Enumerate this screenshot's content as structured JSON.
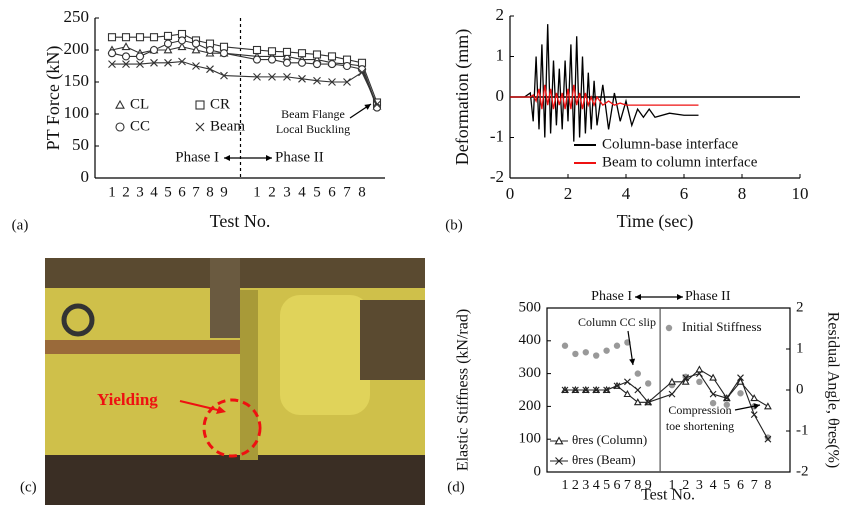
{
  "chart_data": [
    {
      "type": "line",
      "panel": "(a)",
      "x_label": "Test No.",
      "y_label": "PT Force (kN)",
      "categories": [
        "1",
        "2",
        "3",
        "4",
        "5",
        "6",
        "7",
        "8",
        "9",
        "1",
        "2",
        "3",
        "4",
        "5",
        "6",
        "7",
        "8",
        null
      ],
      "ylim": [
        0,
        250
      ],
      "yticks": [
        0,
        50,
        100,
        150,
        200,
        250
      ],
      "phases": [
        "Phase I",
        "Phase II"
      ],
      "annotation": [
        "Beam Flange",
        "Local Buckling"
      ],
      "series": [
        {
          "name": "CL",
          "marker": "triangle",
          "color": "#333333",
          "values": [
            200,
            205,
            195,
            200,
            200,
            205,
            200,
            195,
            195,
            190,
            190,
            190,
            185,
            185,
            180,
            178,
            175,
            112
          ]
        },
        {
          "name": "CR",
          "marker": "square",
          "color": "#333333",
          "values": [
            220,
            220,
            220,
            220,
            222,
            225,
            215,
            210,
            205,
            200,
            198,
            197,
            195,
            193,
            190,
            185,
            180,
            118
          ]
        },
        {
          "name": "CC",
          "marker": "circle",
          "color": "#333333",
          "values": [
            195,
            190,
            190,
            200,
            210,
            215,
            210,
            200,
            195,
            185,
            185,
            180,
            180,
            178,
            178,
            175,
            170,
            110
          ]
        },
        {
          "name": "Beam",
          "marker": "x",
          "color": "#333333",
          "values": [
            178,
            178,
            178,
            180,
            180,
            182,
            175,
            170,
            160,
            158,
            158,
            158,
            155,
            152,
            150,
            150,
            165,
            115
          ]
        }
      ]
    },
    {
      "type": "line",
      "panel": "(b)",
      "x_label": "Time (sec)",
      "y_label": "Deformation (mm)",
      "x": [
        0,
        0.5,
        0.7,
        0.8,
        0.9,
        1.0,
        1.1,
        1.2,
        1.3,
        1.4,
        1.5,
        1.6,
        1.7,
        1.8,
        1.9,
        2.0,
        2.1,
        2.2,
        2.3,
        2.4,
        2.5,
        2.6,
        2.7,
        2.8,
        2.9,
        3.0,
        3.2,
        3.4,
        3.6,
        3.8,
        4.0,
        4.2,
        4.4,
        4.6,
        4.8,
        5.0,
        5.5,
        6.0,
        6.5
      ],
      "xlim": [
        0,
        10
      ],
      "xticks": [
        0,
        2,
        4,
        6,
        8,
        10
      ],
      "ylim": [
        -2,
        2
      ],
      "yticks": [
        -2,
        -1,
        0,
        1,
        2
      ],
      "series": [
        {
          "name": "Column-base interface",
          "color": "#000000",
          "values": [
            0,
            0,
            0.1,
            -0.6,
            1.0,
            -0.8,
            1.3,
            -1.0,
            1.8,
            -0.9,
            0.9,
            -0.7,
            0.7,
            -0.8,
            0.9,
            -0.6,
            1.3,
            -1.1,
            1.5,
            -1.0,
            1.0,
            -0.9,
            0.6,
            -0.8,
            0.4,
            -0.7,
            0.3,
            -0.8,
            0.1,
            -0.6,
            -0.1,
            -0.7,
            -0.3,
            -0.5,
            -0.3,
            -0.5,
            -0.4,
            -0.45,
            -0.45
          ]
        },
        {
          "name": "Beam to column interface",
          "color": "#ee1111",
          "values": [
            0,
            0,
            0,
            0.05,
            -0.1,
            0.2,
            -0.3,
            0.3,
            -0.2,
            0.2,
            -0.3,
            0.1,
            -0.2,
            0.1,
            -0.3,
            0.2,
            -0.3,
            0.3,
            -0.2,
            0.1,
            -0.3,
            0.1,
            -0.2,
            0.0,
            -0.2,
            0.0,
            -0.2,
            -0.1,
            -0.2,
            -0.15,
            -0.2,
            -0.2,
            -0.2,
            -0.2,
            -0.2,
            -0.2,
            -0.2,
            -0.2,
            -0.2
          ]
        }
      ]
    },
    {
      "type": "line",
      "panel": "(d)",
      "x_label": "Test No.",
      "y_label": "Elastic Stiffness (kN/rad)",
      "y2_label": "Residual Angle, θres(%)",
      "categories": [
        "1",
        "2",
        "3",
        "4",
        "5",
        "6",
        "7",
        "8",
        "9",
        "1",
        "2",
        "3",
        "4",
        "5",
        "6",
        "7",
        "8"
      ],
      "ylim": [
        0,
        500
      ],
      "yticks": [
        0,
        100,
        200,
        300,
        400,
        500
      ],
      "y2lim": [
        -2,
        2
      ],
      "y2ticks": [
        -2,
        -1,
        0,
        1,
        2
      ],
      "phases": [
        "Phase I",
        "Phase II"
      ],
      "annotations": [
        "Column CC slip",
        "Compression",
        "toe shortening"
      ],
      "series": [
        {
          "name": "Initial Stiffness",
          "marker": "dot",
          "line": false,
          "color": "#999999",
          "values": [
            385,
            360,
            365,
            355,
            370,
            385,
            395,
            300,
            270,
            265,
            290,
            275,
            210,
            205,
            240,
            200,
            105
          ]
        },
        {
          "name": "θres (Column)",
          "marker": "triangle",
          "line": true,
          "axis": "y2",
          "color": "#222222",
          "values": [
            0,
            0,
            0,
            0,
            0,
            0.1,
            -0.1,
            -0.3,
            -0.3,
            0.2,
            0.2,
            0.5,
            0.3,
            -0.2,
            0.2,
            -0.2,
            -0.4
          ]
        },
        {
          "name": "θres (Beam)",
          "marker": "x",
          "line": true,
          "axis": "y2",
          "color": "#222222",
          "values": [
            0,
            0,
            0,
            0,
            0,
            0.1,
            0.2,
            0.0,
            -0.3,
            -0.1,
            0.3,
            0.4,
            -0.1,
            -0.2,
            0.3,
            -0.6,
            -1.2
          ]
        }
      ]
    }
  ],
  "photo": {
    "panel": "(c)",
    "annotation": "Yielding"
  }
}
